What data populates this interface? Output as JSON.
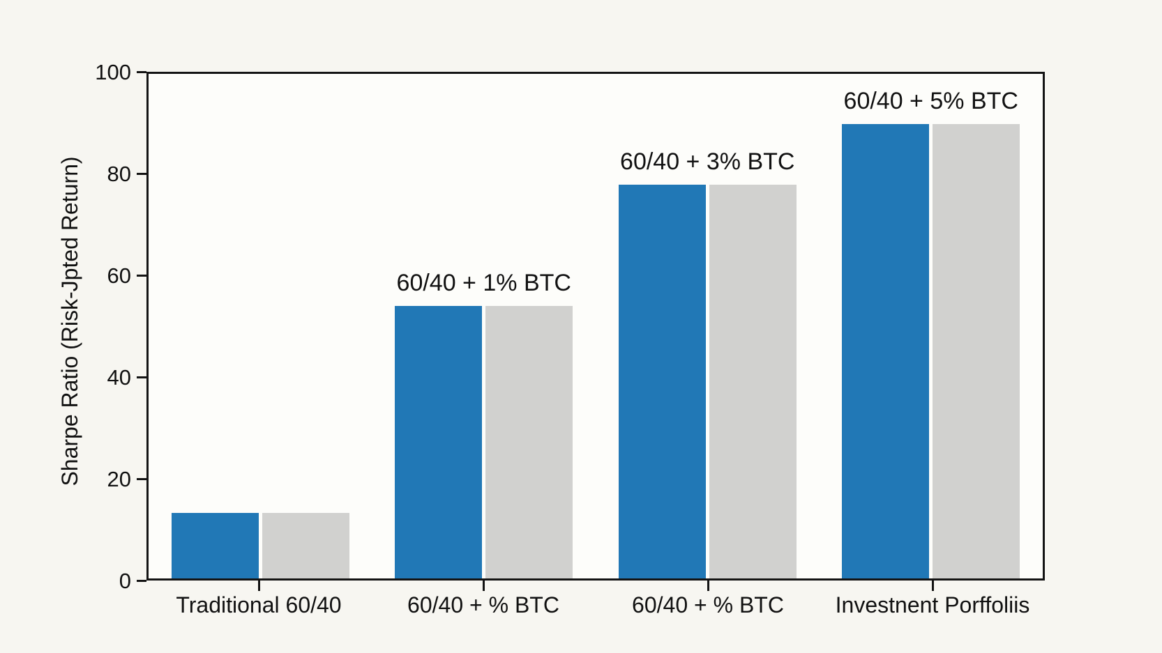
{
  "figure": {
    "background_color": "#f7f6f1",
    "plot_background_color": "#fdfdfa",
    "frame_color": "#141414",
    "text_color": "#111111"
  },
  "chart_data": {
    "type": "bar",
    "title": "",
    "xlabel": "",
    "ylabel": "Sharpe Ratio (Risk-Jpted Return)",
    "categories": [
      "Traditional 60/40",
      "60/40 + % BTC",
      "60/40 + % BTC",
      "Investnent Porffoliis"
    ],
    "series": [
      {
        "name": "blue-bars",
        "color": "#2178b6",
        "values": [
          13,
          54,
          78,
          90
        ]
      },
      {
        "name": "gray-bars",
        "color": "#d1d1cf",
        "values": [
          13,
          54,
          78,
          90
        ]
      }
    ],
    "annotations": [
      "",
      "60/40 + 1% BTC",
      "60/40 + 3% BTC",
      "60/40 + 5% BTC"
    ],
    "y_ticks": [
      0,
      20,
      40,
      60,
      80,
      100
    ],
    "ylim": [
      0,
      100
    ],
    "grid": false,
    "legend": "none"
  }
}
